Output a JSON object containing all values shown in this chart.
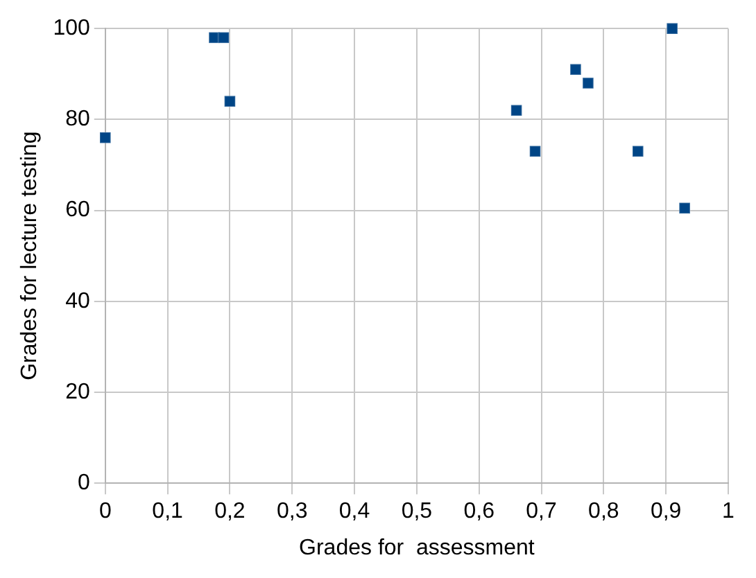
{
  "chart_data": {
    "type": "scatter",
    "xlabel": "Grades for  assessment",
    "ylabel": "Grades for lecture testing",
    "x": [
      0,
      0.175,
      0.19,
      0.2,
      0.66,
      0.69,
      0.755,
      0.775,
      0.855,
      0.91,
      0.93
    ],
    "series": [
      {
        "color": "#004586",
        "values": [
          76,
          98,
          98,
          84,
          82,
          73,
          91,
          88,
          73,
          100,
          60.5
        ]
      }
    ],
    "xlim": [
      0,
      1
    ],
    "ylim": [
      0,
      100
    ],
    "xticks": [
      0,
      {
        "value": 0.1,
        "label": "0,1"
      },
      {
        "value": 0.2,
        "label": "0,2"
      },
      {
        "value": 0.3,
        "label": "0,3"
      },
      {
        "value": 0.4,
        "label": "0,4"
      },
      {
        "value": 0.5,
        "label": "0,5"
      },
      {
        "value": 0.6,
        "label": "0,6"
      },
      {
        "value": 0.7,
        "label": "0,7"
      },
      {
        "value": 0.8,
        "label": "0,8"
      },
      {
        "value": 0.9,
        "label": "0,9"
      },
      1
    ],
    "yticks": [
      0,
      20,
      40,
      60,
      80,
      100
    ],
    "grid": true,
    "marker": "square",
    "legend": false
  }
}
